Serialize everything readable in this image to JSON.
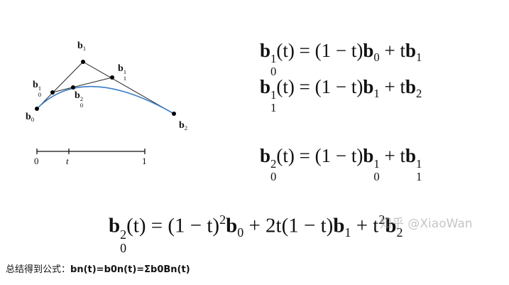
{
  "labels": [
    {
      "tokens": [
        {
          "base": "b",
          "sub": "1"
        }
      ]
    },
    {
      "tokens": [
        {
          "base": "b",
          "sub": "0",
          "sup": "1"
        }
      ]
    },
    {
      "tokens": [
        {
          "base": "b",
          "sub": "1",
          "sup": "1"
        }
      ]
    },
    {
      "tokens": [
        {
          "base": "b",
          "sub": "0",
          "sup": "2"
        }
      ]
    },
    {
      "tokens": [
        {
          "base": "b",
          "sub": "0"
        }
      ]
    },
    {
      "tokens": [
        {
          "base": "b",
          "sub": "2"
        }
      ]
    }
  ],
  "axis_labels": [
    "0",
    "t",
    "1"
  ],
  "formulas": [
    {
      "tokens": [
        {
          "base": "b",
          "sub": "0",
          "sup": "1"
        },
        "(t) = (1 − t)",
        {
          "base": "b",
          "sub": "0"
        },
        " + t",
        {
          "base": "b",
          "sub": "1"
        }
      ]
    },
    {
      "tokens": [
        {
          "base": "b",
          "sub": "1",
          "sup": "1"
        },
        "(t) = (1 − t)",
        {
          "base": "b",
          "sub": "1"
        },
        " + t",
        {
          "base": "b",
          "sub": "2"
        }
      ]
    },
    {
      "tokens": [
        {
          "base": "b",
          "sub": "0",
          "sup": "2"
        },
        "(t) = (1 − t)",
        {
          "base": "b",
          "sub": "0",
          "sup": "1"
        },
        " + t",
        {
          "base": "b",
          "sub": "1",
          "sup": "1"
        }
      ]
    },
    {
      "tokens": [
        {
          "base": "b",
          "sub": "0",
          "sup": "2"
        },
        "(t) = (1 − t)",
        {
          "sup": "2"
        },
        {
          "base": "b",
          "sub": "0"
        },
        " + 2t(1 − t)",
        {
          "base": "b",
          "sub": "1"
        },
        " + t",
        {
          "sup": "2"
        },
        {
          "base": "b",
          "sub": "2"
        }
      ]
    }
  ],
  "watermark": "知乎 @XiaoWan",
  "caption": {
    "text": "总结得到公式：",
    "formula": "bn(t)=b0n(t)=Σb0Bn(t)"
  }
}
